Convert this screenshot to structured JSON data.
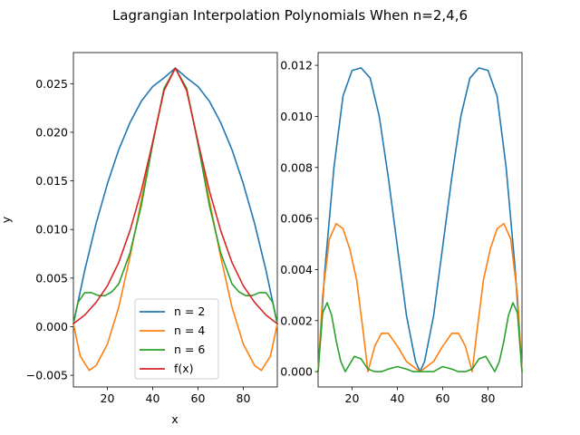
{
  "figure_title": "Lagrangian Interpolation Polynomials When n=2,4,6",
  "chart_data": [
    {
      "type": "line",
      "title": "",
      "xlabel": "x",
      "ylabel": "y",
      "xlim": [
        5,
        95
      ],
      "ylim": [
        -0.0062,
        0.0282
      ],
      "xticks": [
        20,
        40,
        60,
        80
      ],
      "yticks": [
        -0.005,
        0.0,
        0.005,
        0.01,
        0.015,
        0.02,
        0.025
      ],
      "ytick_labels": [
        "−0.005",
        "0.000",
        "0.005",
        "0.010",
        "0.015",
        "0.020",
        "0.025"
      ],
      "legend": {
        "location": "lower-center",
        "entries": [
          "n = 2",
          "n = 4",
          "n = 6",
          "f(x)"
        ]
      },
      "grid": false,
      "series": [
        {
          "name": "n = 2",
          "color": "#1f77b4",
          "x": [
            5,
            10,
            15,
            20,
            25,
            30,
            35,
            40,
            45,
            50,
            55,
            60,
            65,
            70,
            75,
            80,
            85,
            90,
            95
          ],
          "y": [
            0.0003,
            0.0058,
            0.0106,
            0.0147,
            0.0182,
            0.021,
            0.0232,
            0.0247,
            0.0256,
            0.0266,
            0.0256,
            0.0247,
            0.0232,
            0.021,
            0.0182,
            0.0147,
            0.0106,
            0.0058,
            0.0003
          ]
        },
        {
          "name": "n = 4",
          "color": "#ff7f0e",
          "x": [
            5,
            8,
            12,
            15,
            20,
            25,
            30,
            35,
            40,
            45,
            50,
            55,
            60,
            65,
            70,
            75,
            80,
            85,
            88,
            92,
            95
          ],
          "y": [
            0.0003,
            -0.003,
            -0.0045,
            -0.004,
            -0.0018,
            0.002,
            0.0072,
            0.013,
            0.019,
            0.0243,
            0.0266,
            0.0243,
            0.019,
            0.013,
            0.0072,
            0.002,
            -0.0018,
            -0.004,
            -0.0045,
            -0.003,
            0.0003
          ]
        },
        {
          "name": "n = 6",
          "color": "#2ca02c",
          "x": [
            5,
            7,
            10,
            13,
            16,
            19,
            22,
            25,
            30,
            35,
            40,
            45,
            50,
            55,
            60,
            65,
            70,
            75,
            78,
            81,
            84,
            87,
            90,
            93,
            95
          ],
          "y": [
            0.0003,
            0.0025,
            0.0035,
            0.0035,
            0.0032,
            0.0032,
            0.0036,
            0.0044,
            0.0076,
            0.0125,
            0.0188,
            0.0245,
            0.0266,
            0.0245,
            0.0188,
            0.0125,
            0.0076,
            0.0044,
            0.0036,
            0.0032,
            0.0032,
            0.0035,
            0.0035,
            0.0025,
            0.0003
          ]
        },
        {
          "name": "f(x)",
          "color": "#d62728",
          "x": [
            5,
            10,
            15,
            20,
            25,
            30,
            35,
            40,
            45,
            50,
            55,
            60,
            65,
            70,
            75,
            80,
            85,
            90,
            95
          ],
          "y": [
            0.0003,
            0.0012,
            0.0025,
            0.0042,
            0.0066,
            0.0099,
            0.014,
            0.019,
            0.0243,
            0.0266,
            0.0243,
            0.019,
            0.014,
            0.0099,
            0.0066,
            0.0042,
            0.0025,
            0.0012,
            0.0003
          ]
        }
      ]
    },
    {
      "type": "line",
      "title": "",
      "xlabel": "",
      "ylabel": "",
      "xlim": [
        5,
        95
      ],
      "ylim": [
        -0.0006,
        0.0125
      ],
      "xticks": [
        20,
        40,
        60,
        80
      ],
      "yticks": [
        0.0,
        0.002,
        0.004,
        0.006,
        0.008,
        0.01,
        0.012
      ],
      "ytick_labels": [
        "0.000",
        "0.002",
        "0.004",
        "0.006",
        "0.008",
        "0.010",
        "0.012"
      ],
      "grid": false,
      "series": [
        {
          "name": "n = 2",
          "color": "#1f77b4",
          "x": [
            5,
            8,
            12,
            16,
            20,
            24,
            28,
            32,
            36,
            40,
            44,
            48,
            50,
            52,
            56,
            60,
            64,
            68,
            72,
            76,
            80,
            84,
            88,
            92,
            95
          ],
          "y": [
            0.0,
            0.004,
            0.008,
            0.0108,
            0.0118,
            0.0119,
            0.0115,
            0.01,
            0.0076,
            0.0049,
            0.0022,
            0.0004,
            0.0,
            0.0004,
            0.0022,
            0.0049,
            0.0076,
            0.01,
            0.0115,
            0.0119,
            0.0118,
            0.0108,
            0.008,
            0.004,
            0.0
          ]
        },
        {
          "name": "n = 4",
          "color": "#ff7f0e",
          "x": [
            5,
            7,
            10,
            13,
            16,
            19,
            22,
            25,
            27,
            30,
            33,
            36,
            40,
            44,
            50,
            56,
            60,
            64,
            67,
            70,
            73,
            75,
            78,
            81,
            84,
            87,
            90,
            93,
            95
          ],
          "y": [
            0.0,
            0.003,
            0.0052,
            0.0058,
            0.0056,
            0.0048,
            0.0036,
            0.0015,
            0.0,
            0.001,
            0.0015,
            0.0015,
            0.001,
            0.0004,
            0.0,
            0.0004,
            0.001,
            0.0015,
            0.0015,
            0.001,
            0.0,
            0.0015,
            0.0036,
            0.0048,
            0.0056,
            0.0058,
            0.0052,
            0.003,
            0.0
          ]
        },
        {
          "name": "n = 6",
          "color": "#2ca02c",
          "x": [
            5,
            7,
            9,
            11,
            13,
            15,
            17,
            19,
            21,
            24,
            27,
            30,
            33,
            36,
            40,
            44,
            47,
            50,
            53,
            56,
            60,
            64,
            67,
            70,
            73,
            76,
            79,
            81,
            83,
            85,
            87,
            89,
            91,
            93,
            95
          ],
          "y": [
            0.0,
            0.0023,
            0.0027,
            0.0022,
            0.0012,
            0.0004,
            0.0,
            0.0003,
            0.0006,
            0.0005,
            0.0001,
            0.0,
            0.0,
            0.0001,
            0.0002,
            0.0001,
            0.0,
            0.0,
            0.0,
            0.0,
            0.0002,
            0.0001,
            0.0,
            0.0,
            0.0001,
            0.0005,
            0.0006,
            0.0003,
            0.0,
            0.0004,
            0.0012,
            0.0022,
            0.0027,
            0.0023,
            0.0
          ]
        }
      ]
    }
  ]
}
